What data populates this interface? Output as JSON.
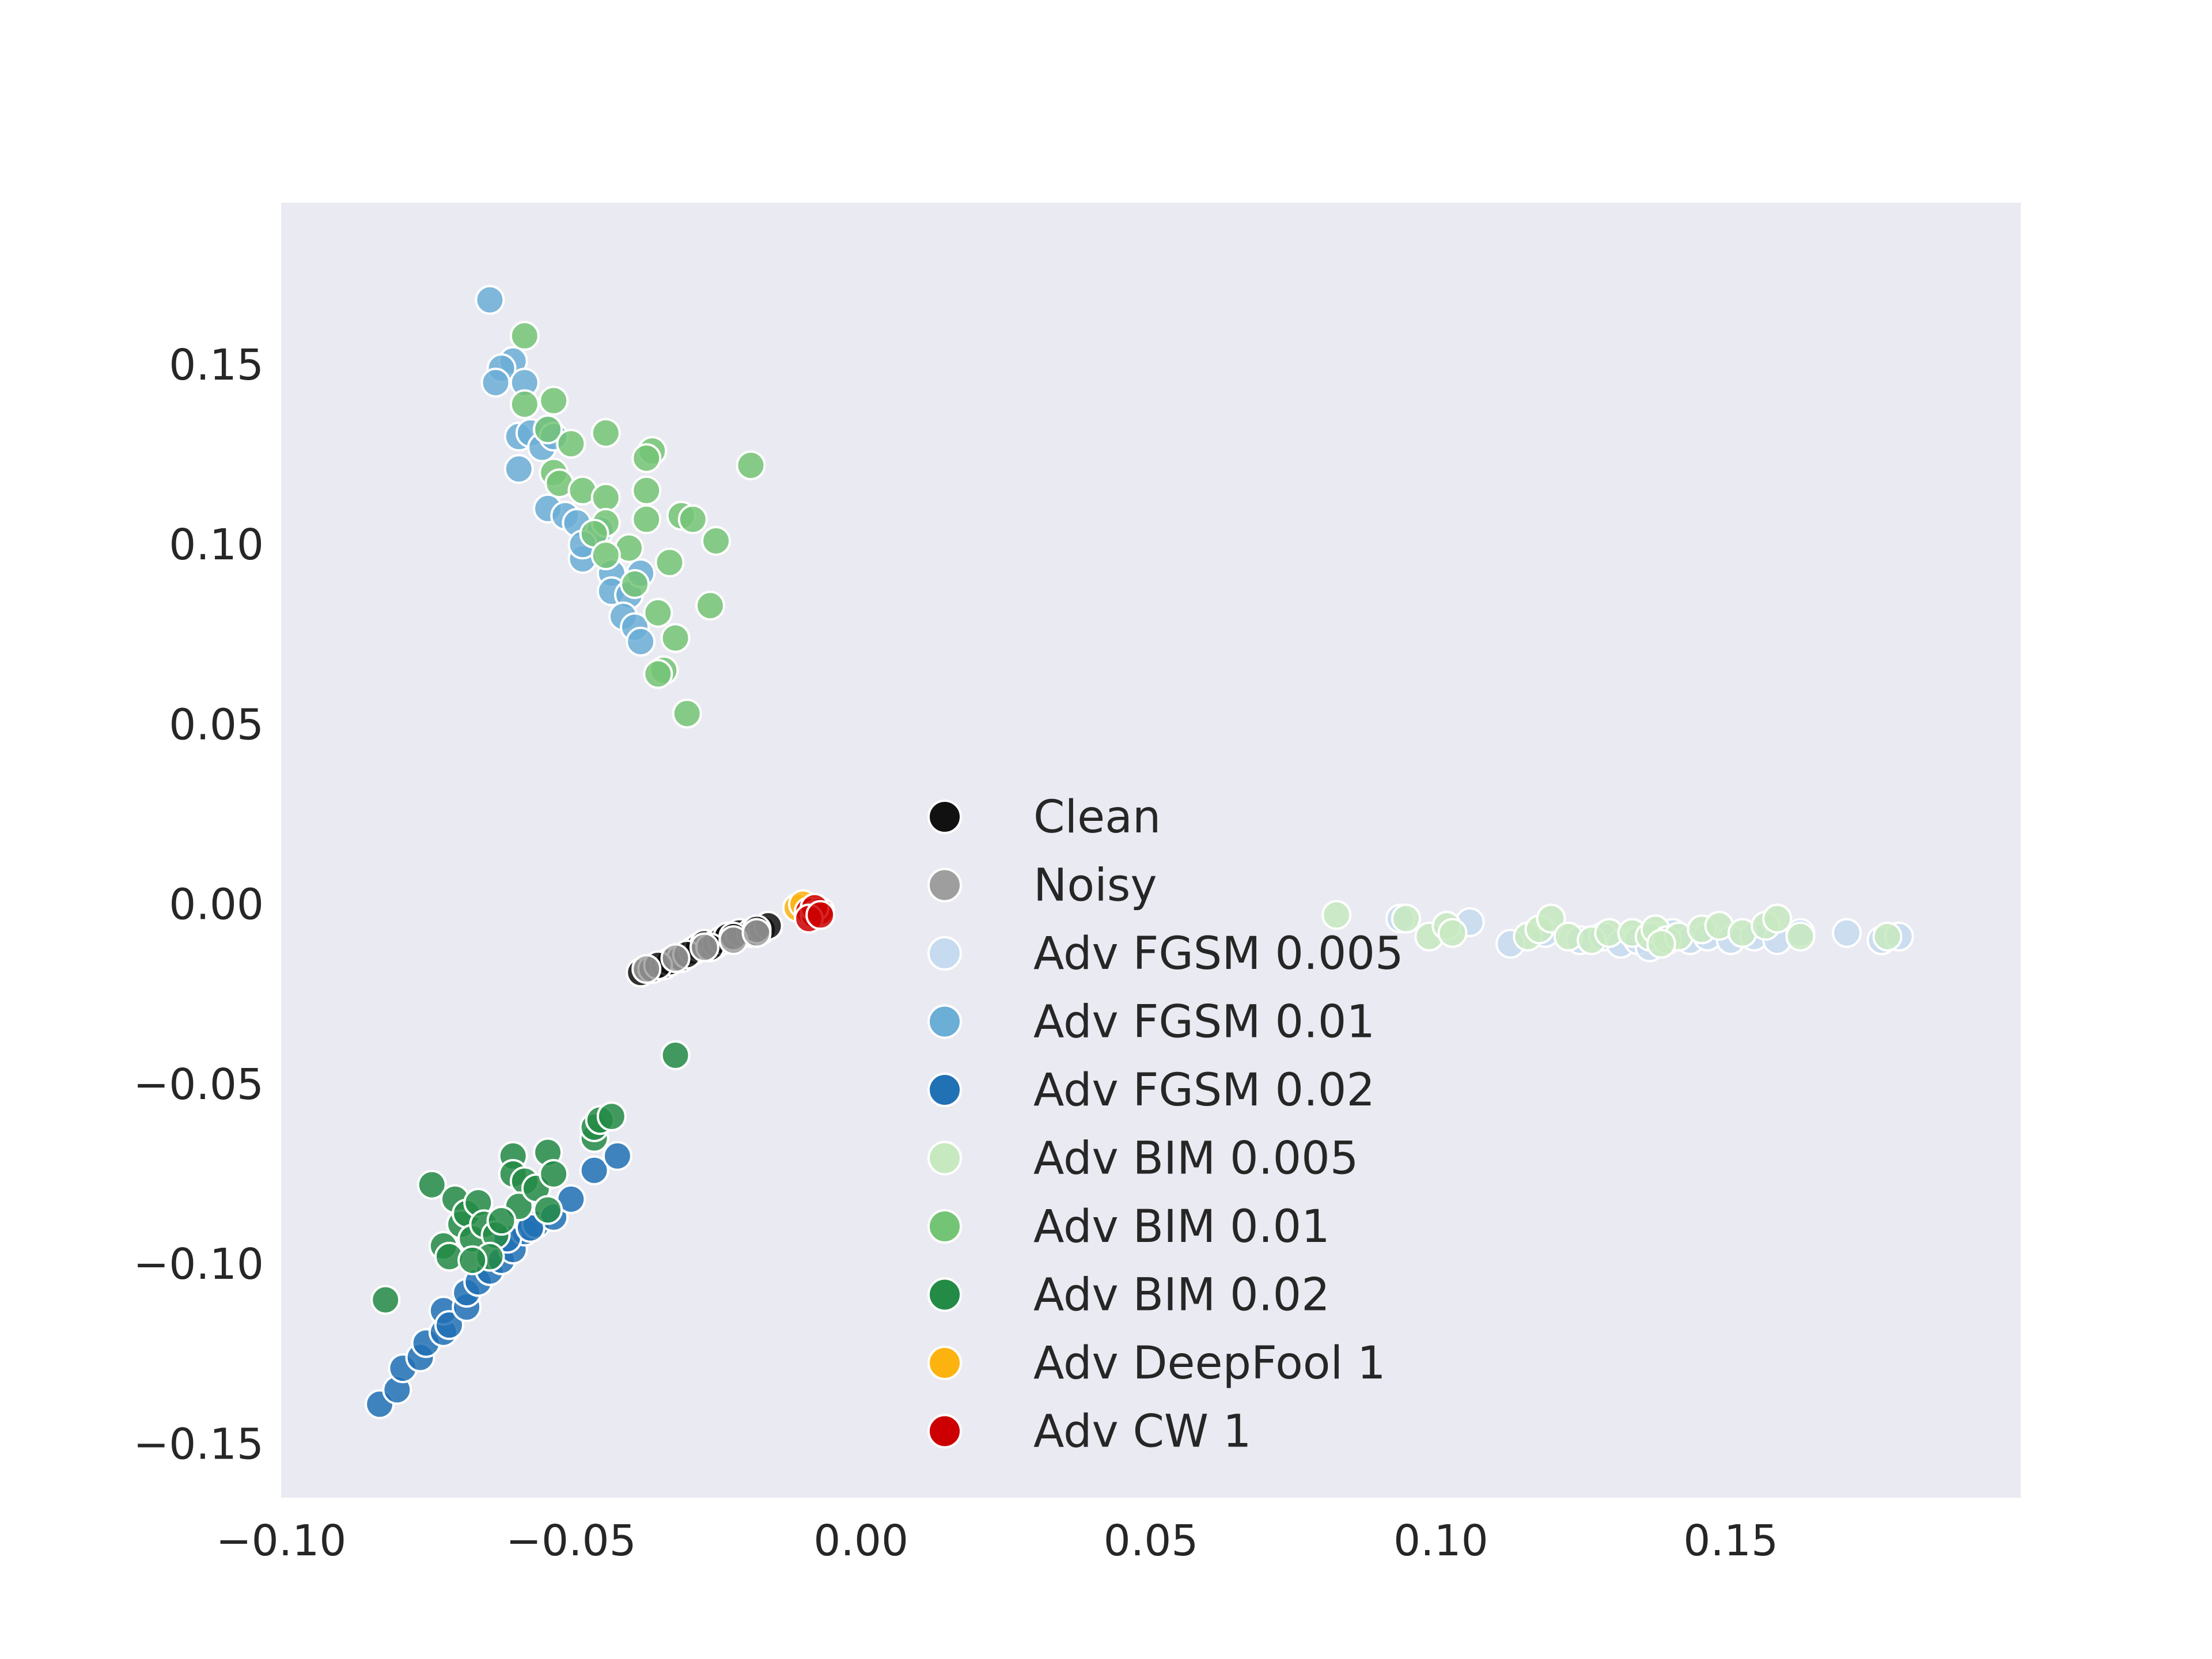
{
  "chart_data": {
    "type": "scatter",
    "title": "",
    "xlabel": "",
    "ylabel": "",
    "xlim": [
      -0.1,
      0.2
    ],
    "ylim": [
      -0.165,
      0.195
    ],
    "xticks": [
      -0.1,
      -0.05,
      0.0,
      0.05,
      0.1,
      0.15
    ],
    "yticks": [
      -0.15,
      -0.1,
      -0.05,
      0.0,
      0.05,
      0.1,
      0.15
    ],
    "xtick_labels": [
      "−0.10",
      "−0.05",
      "0.00",
      "0.05",
      "0.10",
      "0.15"
    ],
    "ytick_labels": [
      "−0.15",
      "−0.10",
      "−0.05",
      "0.00",
      "0.05",
      "0.10",
      "0.15"
    ],
    "grid": false,
    "background": "#EAEAF2",
    "legend_position": "center",
    "series": [
      {
        "name": "Clean",
        "color": "#111111",
        "points": [
          [
            -0.038,
            -0.019
          ],
          [
            -0.036,
            -0.018
          ],
          [
            -0.034,
            -0.017
          ],
          [
            -0.033,
            -0.016
          ],
          [
            -0.031,
            -0.015
          ],
          [
            -0.029,
            -0.013
          ],
          [
            -0.028,
            -0.012
          ],
          [
            -0.027,
            -0.011
          ],
          [
            -0.025,
            -0.011
          ],
          [
            -0.024,
            -0.01
          ],
          [
            -0.023,
            -0.009
          ],
          [
            -0.021,
            -0.008
          ],
          [
            -0.019,
            -0.008
          ],
          [
            -0.017,
            -0.007
          ],
          [
            -0.016,
            -0.006
          ],
          [
            -0.035,
            -0.017
          ],
          [
            -0.03,
            -0.014
          ],
          [
            -0.026,
            -0.012
          ],
          [
            -0.022,
            -0.009
          ],
          [
            -0.018,
            -0.007
          ]
        ]
      },
      {
        "name": "Noisy",
        "color": "#9E9E9E",
        "points": [
          [
            -0.037,
            -0.018
          ],
          [
            -0.032,
            -0.015
          ],
          [
            -0.027,
            -0.012
          ],
          [
            -0.022,
            -0.01
          ],
          [
            -0.018,
            -0.008
          ]
        ]
      },
      {
        "name": "Adv FGSM 0.005",
        "color": "#C6DBEF",
        "points": [
          [
            0.093,
            -0.004
          ],
          [
            0.105,
            -0.005
          ],
          [
            0.112,
            -0.011
          ],
          [
            0.118,
            -0.008
          ],
          [
            0.124,
            -0.01
          ],
          [
            0.128,
            -0.009
          ],
          [
            0.131,
            -0.011
          ],
          [
            0.134,
            -0.01
          ],
          [
            0.137,
            -0.009
          ],
          [
            0.14,
            -0.008
          ],
          [
            0.143,
            -0.01
          ],
          [
            0.146,
            -0.009
          ],
          [
            0.15,
            -0.01
          ],
          [
            0.154,
            -0.009
          ],
          [
            0.158,
            -0.01
          ],
          [
            0.162,
            -0.008
          ],
          [
            0.17,
            -0.008
          ],
          [
            0.176,
            -0.01
          ],
          [
            0.179,
            -0.009
          ],
          [
            0.136,
            -0.012
          ]
        ]
      },
      {
        "name": "Adv FGSM 0.01",
        "color": "#6BAED6",
        "points": [
          [
            -0.064,
            0.168
          ],
          [
            -0.06,
            0.151
          ],
          [
            -0.062,
            0.149
          ],
          [
            -0.063,
            0.145
          ],
          [
            -0.058,
            0.145
          ],
          [
            -0.059,
            0.13
          ],
          [
            -0.057,
            0.131
          ],
          [
            -0.055,
            0.127
          ],
          [
            -0.054,
            0.132
          ],
          [
            -0.053,
            0.13
          ],
          [
            -0.059,
            0.121
          ],
          [
            -0.054,
            0.11
          ],
          [
            -0.051,
            0.108
          ],
          [
            -0.049,
            0.106
          ],
          [
            -0.045,
            0.104
          ],
          [
            -0.048,
            0.096
          ],
          [
            -0.043,
            0.092
          ],
          [
            -0.043,
            0.087
          ],
          [
            -0.04,
            0.086
          ],
          [
            -0.038,
            0.092
          ],
          [
            -0.041,
            0.08
          ],
          [
            -0.039,
            0.077
          ],
          [
            -0.038,
            0.073
          ],
          [
            -0.048,
            0.1
          ]
        ]
      },
      {
        "name": "Adv FGSM 0.02",
        "color": "#2171B5",
        "points": [
          [
            -0.083,
            -0.139
          ],
          [
            -0.08,
            -0.135
          ],
          [
            -0.079,
            -0.129
          ],
          [
            -0.076,
            -0.126
          ],
          [
            -0.075,
            -0.122
          ],
          [
            -0.072,
            -0.119
          ],
          [
            -0.072,
            -0.113
          ],
          [
            -0.071,
            -0.117
          ],
          [
            -0.068,
            -0.112
          ],
          [
            -0.068,
            -0.108
          ],
          [
            -0.066,
            -0.105
          ],
          [
            -0.064,
            -0.102
          ],
          [
            -0.062,
            -0.099
          ],
          [
            -0.06,
            -0.096
          ],
          [
            -0.058,
            -0.091
          ],
          [
            -0.056,
            -0.089
          ],
          [
            -0.053,
            -0.087
          ],
          [
            -0.05,
            -0.082
          ],
          [
            -0.046,
            -0.074
          ],
          [
            -0.042,
            -0.07
          ],
          [
            -0.061,
            -0.093
          ],
          [
            -0.057,
            -0.09
          ]
        ]
      },
      {
        "name": "Adv BIM 0.005",
        "color": "#C7E9C0",
        "points": [
          [
            0.082,
            -0.003
          ],
          [
            0.094,
            -0.004
          ],
          [
            0.098,
            -0.009
          ],
          [
            0.101,
            -0.006
          ],
          [
            0.102,
            -0.008
          ],
          [
            0.115,
            -0.009
          ],
          [
            0.117,
            -0.007
          ],
          [
            0.119,
            -0.004
          ],
          [
            0.122,
            -0.009
          ],
          [
            0.126,
            -0.01
          ],
          [
            0.129,
            -0.008
          ],
          [
            0.133,
            -0.008
          ],
          [
            0.136,
            -0.009
          ],
          [
            0.137,
            -0.007
          ],
          [
            0.139,
            -0.01
          ],
          [
            0.141,
            -0.009
          ],
          [
            0.145,
            -0.007
          ],
          [
            0.148,
            -0.006
          ],
          [
            0.152,
            -0.008
          ],
          [
            0.156,
            -0.006
          ],
          [
            0.158,
            -0.004
          ],
          [
            0.162,
            -0.009
          ],
          [
            0.177,
            -0.009
          ],
          [
            0.138,
            -0.011
          ]
        ]
      },
      {
        "name": "Adv BIM 0.01",
        "color": "#74C476",
        "points": [
          [
            -0.058,
            0.158
          ],
          [
            -0.058,
            0.139
          ],
          [
            -0.053,
            0.14
          ],
          [
            -0.054,
            0.132
          ],
          [
            -0.05,
            0.128
          ],
          [
            -0.044,
            0.131
          ],
          [
            -0.036,
            0.126
          ],
          [
            -0.037,
            0.124
          ],
          [
            -0.019,
            0.122
          ],
          [
            -0.053,
            0.12
          ],
          [
            -0.052,
            0.117
          ],
          [
            -0.048,
            0.115
          ],
          [
            -0.044,
            0.113
          ],
          [
            -0.037,
            0.115
          ],
          [
            -0.031,
            0.108
          ],
          [
            -0.029,
            0.107
          ],
          [
            -0.037,
            0.107
          ],
          [
            -0.044,
            0.106
          ],
          [
            -0.046,
            0.103
          ],
          [
            -0.04,
            0.099
          ],
          [
            -0.044,
            0.097
          ],
          [
            -0.025,
            0.101
          ],
          [
            -0.033,
            0.095
          ],
          [
            -0.039,
            0.089
          ],
          [
            -0.035,
            0.081
          ],
          [
            -0.026,
            0.083
          ],
          [
            -0.032,
            0.074
          ],
          [
            -0.034,
            0.065
          ],
          [
            -0.035,
            0.064
          ],
          [
            -0.03,
            0.053
          ]
        ]
      },
      {
        "name": "Adv BIM 0.02",
        "color": "#238B45",
        "points": [
          [
            -0.082,
            -0.11
          ],
          [
            -0.074,
            -0.078
          ],
          [
            -0.07,
            -0.082
          ],
          [
            -0.072,
            -0.095
          ],
          [
            -0.071,
            -0.098
          ],
          [
            -0.069,
            -0.089
          ],
          [
            -0.068,
            -0.086
          ],
          [
            -0.067,
            -0.093
          ],
          [
            -0.066,
            -0.083
          ],
          [
            -0.065,
            -0.089
          ],
          [
            -0.063,
            -0.092
          ],
          [
            -0.064,
            -0.098
          ],
          [
            -0.06,
            -0.07
          ],
          [
            -0.06,
            -0.075
          ],
          [
            -0.058,
            -0.077
          ],
          [
            -0.059,
            -0.084
          ],
          [
            -0.056,
            -0.079
          ],
          [
            -0.054,
            -0.069
          ],
          [
            -0.053,
            -0.075
          ],
          [
            -0.054,
            -0.085
          ],
          [
            -0.046,
            -0.065
          ],
          [
            -0.046,
            -0.062
          ],
          [
            -0.045,
            -0.06
          ],
          [
            -0.043,
            -0.059
          ],
          [
            -0.032,
            -0.042
          ],
          [
            -0.067,
            -0.099
          ],
          [
            -0.062,
            -0.088
          ]
        ]
      },
      {
        "name": "Adv DeepFool 1",
        "color": "#FDB30F",
        "points": [
          [
            -0.011,
            -0.001
          ],
          [
            -0.01,
            0.0
          ],
          [
            -0.009,
            -0.002
          ],
          [
            -0.008,
            -0.001
          ]
        ]
      },
      {
        "name": "Adv CW 1",
        "color": "#CC0000",
        "points": [
          [
            -0.009,
            -0.002
          ],
          [
            -0.008,
            -0.003
          ],
          [
            -0.007,
            -0.002
          ],
          [
            -0.008,
            -0.001
          ],
          [
            -0.009,
            -0.004
          ],
          [
            -0.007,
            -0.003
          ]
        ]
      }
    ]
  }
}
